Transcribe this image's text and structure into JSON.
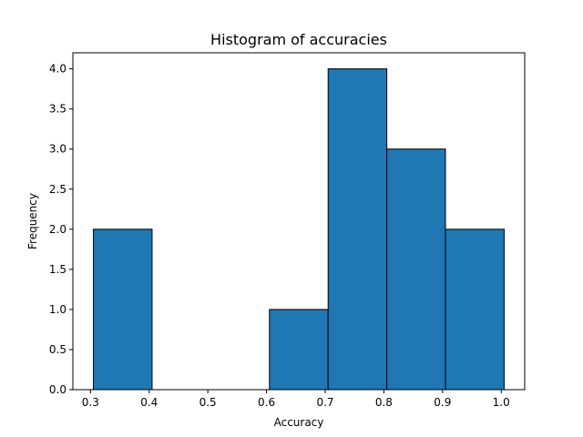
{
  "chart_data": {
    "type": "bar",
    "title": "Histogram of accuracies",
    "xlabel": "Accuracy",
    "ylabel": "Frequency",
    "bins": [
      {
        "x0": 0.305,
        "x1": 0.405,
        "count": 2
      },
      {
        "x0": 0.405,
        "x1": 0.505,
        "count": 0
      },
      {
        "x0": 0.505,
        "x1": 0.605,
        "count": 0
      },
      {
        "x0": 0.605,
        "x1": 0.705,
        "count": 1
      },
      {
        "x0": 0.705,
        "x1": 0.805,
        "count": 4
      },
      {
        "x0": 0.805,
        "x1": 0.905,
        "count": 3
      },
      {
        "x0": 0.905,
        "x1": 1.005,
        "count": 2
      }
    ],
    "xlim": [
      0.27,
      1.04
    ],
    "ylim": [
      0,
      4.2
    ],
    "xticks": [
      0.3,
      0.4,
      0.5,
      0.6,
      0.7,
      0.8,
      0.9,
      1.0
    ],
    "xtick_labels": [
      "0.3",
      "0.4",
      "0.5",
      "0.6",
      "0.7",
      "0.8",
      "0.9",
      "1.0"
    ],
    "yticks": [
      0,
      0.5,
      1,
      1.5,
      2,
      2.5,
      3,
      3.5,
      4
    ],
    "ytick_labels": [
      "0.0",
      "0.5",
      "1.0",
      "1.5",
      "2.0",
      "2.5",
      "3.0",
      "3.5",
      "4.0"
    ],
    "grid": false,
    "legend": "none",
    "bar_color": "#1f77b4",
    "edge_color": "#000000"
  }
}
